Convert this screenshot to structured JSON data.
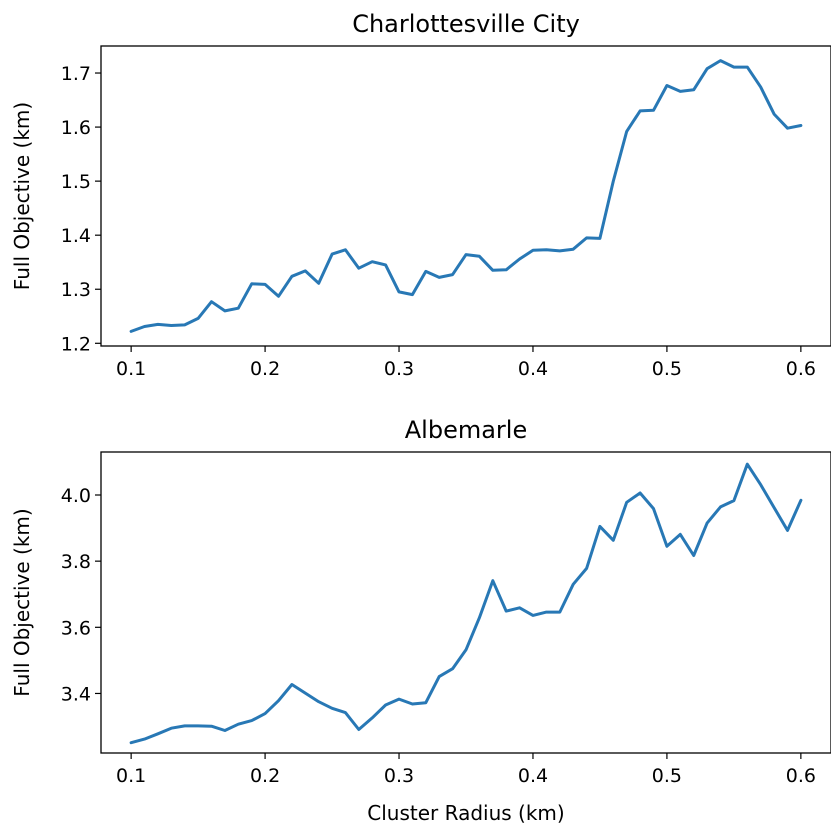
{
  "chart_data": [
    {
      "type": "line",
      "title": "Charlottesville City",
      "xlabel": "",
      "ylabel": "Full Objective (km)",
      "xlim": [
        0.0775,
        0.6225
      ],
      "ylim": [
        1.195,
        1.75
      ],
      "xticks": [
        "0.1",
        "0.2",
        "0.3",
        "0.4",
        "0.5",
        "0.6"
      ],
      "yticks": [
        "1.2",
        "1.3",
        "1.4",
        "1.5",
        "1.6",
        "1.7"
      ],
      "grid": false,
      "color": "#2878b5",
      "series": [
        {
          "x": [
            0.1,
            0.11,
            0.12,
            0.13,
            0.14,
            0.15,
            0.16,
            0.17,
            0.18,
            0.19,
            0.2,
            0.21,
            0.22,
            0.23,
            0.24,
            0.25,
            0.26,
            0.27,
            0.28,
            0.29,
            0.3,
            0.31,
            0.32,
            0.33,
            0.34,
            0.35,
            0.36,
            0.37,
            0.38,
            0.39,
            0.4,
            0.41,
            0.42,
            0.43,
            0.44,
            0.45,
            0.46,
            0.47,
            0.48,
            0.49,
            0.5,
            0.51,
            0.52,
            0.53,
            0.54,
            0.55,
            0.56,
            0.57,
            0.58,
            0.59,
            0.6
          ],
          "values": [
            1.222,
            1.231,
            1.235,
            1.233,
            1.234,
            1.246,
            1.277,
            1.26,
            1.265,
            1.31,
            1.309,
            1.287,
            1.324,
            1.334,
            1.311,
            1.365,
            1.373,
            1.339,
            1.351,
            1.345,
            1.295,
            1.29,
            1.333,
            1.322,
            1.327,
            1.364,
            1.361,
            1.335,
            1.336,
            1.356,
            1.372,
            1.373,
            1.371,
            1.374,
            1.395,
            1.394,
            1.5,
            1.592,
            1.63,
            1.631,
            1.677,
            1.666,
            1.669,
            1.708,
            1.723,
            1.711,
            1.711,
            1.674,
            1.624,
            1.598,
            1.603
          ]
        }
      ]
    },
    {
      "type": "line",
      "title": "Albemarle",
      "xlabel": "Cluster Radius (km)",
      "ylabel": "Full Objective (km)",
      "xlim": [
        0.0775,
        0.6225
      ],
      "ylim": [
        3.22,
        4.13
      ],
      "xticks": [
        "0.1",
        "0.2",
        "0.3",
        "0.4",
        "0.5",
        "0.6"
      ],
      "yticks": [
        "3.4",
        "3.6",
        "3.8",
        "4.0"
      ],
      "grid": false,
      "color": "#2878b5",
      "series": [
        {
          "x": [
            0.1,
            0.11,
            0.12,
            0.13,
            0.14,
            0.15,
            0.16,
            0.17,
            0.18,
            0.19,
            0.2,
            0.21,
            0.22,
            0.23,
            0.24,
            0.25,
            0.26,
            0.27,
            0.28,
            0.29,
            0.3,
            0.31,
            0.32,
            0.33,
            0.34,
            0.35,
            0.36,
            0.37,
            0.38,
            0.39,
            0.4,
            0.41,
            0.42,
            0.43,
            0.44,
            0.45,
            0.46,
            0.47,
            0.48,
            0.49,
            0.5,
            0.51,
            0.52,
            0.53,
            0.54,
            0.55,
            0.56,
            0.57,
            0.58,
            0.59,
            0.6
          ],
          "values": [
            3.251,
            3.262,
            3.278,
            3.295,
            3.302,
            3.302,
            3.301,
            3.288,
            3.307,
            3.318,
            3.339,
            3.378,
            3.427,
            3.401,
            3.375,
            3.355,
            3.342,
            3.291,
            3.326,
            3.365,
            3.383,
            3.368,
            3.372,
            3.451,
            3.475,
            3.532,
            3.629,
            3.741,
            3.649,
            3.659,
            3.636,
            3.646,
            3.646,
            3.73,
            3.778,
            3.905,
            3.863,
            3.978,
            4.006,
            3.959,
            3.845,
            3.881,
            3.817,
            3.915,
            3.964,
            3.983,
            4.093,
            4.031,
            3.962,
            3.893,
            3.984
          ]
        }
      ]
    }
  ]
}
